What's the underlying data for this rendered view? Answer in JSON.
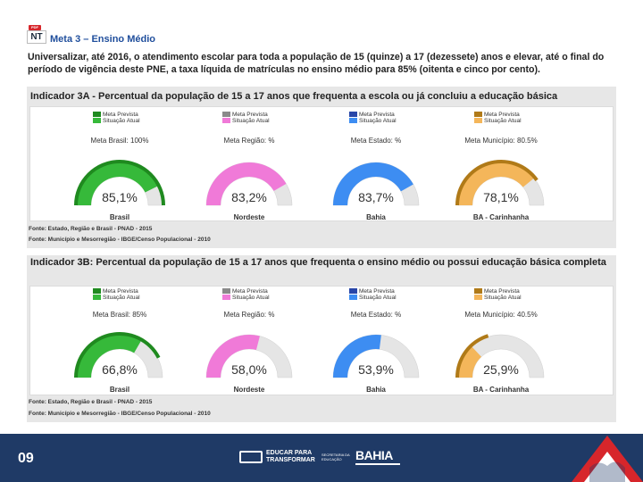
{
  "header": {
    "badge_top": "PDF",
    "badge": "NT",
    "title": "Meta 3 – Ensino Médio",
    "intro": "Universalizar, até 2016, o atendimento escolar para toda a população de 15 (quinze) a 17 (dezessete) anos e elevar, até o final do período de vigência deste PNE, a taxa líquida de matrículas no ensino médio para 85% (oitenta e cinco por cento)."
  },
  "panels": [
    {
      "title": "Indicador 3A - Percentual da população de 15 a 17 anos que frequenta a escola ou já concluiu a educação básica",
      "source1": "Fonte: Estado, Região e Brasil - PNAD - 2015",
      "source2": "Fonte: Município e Mesorregião - IBGE/Censo Populacional - 2010"
    },
    {
      "title": "Indicador 3B: Percentual da população de 15 a 17 anos que frequenta o ensino médio ou possui educação básica completa",
      "source1": "Fonte: Estado, Região e Brasil - PNAD - 2015",
      "source2": "Fonte: Município e Mesorregião - IBGE/Censo Populacional - 2010"
    }
  ],
  "chart_data": [
    {
      "type": "gauge",
      "title": "Indicador 3A - Percentual da população de 15 a 17 anos que frequenta a escola ou já concluiu a educação básica",
      "legend": [
        {
          "labels": [
            "Meta Prevista",
            "Situação Atual"
          ],
          "colors": [
            "#1f8a1f",
            "#36b93a"
          ]
        },
        {
          "labels": [
            "Meta Prevista",
            "Situação Atual"
          ],
          "colors": [
            "#8a8a8a",
            "#f07ad8"
          ]
        },
        {
          "labels": [
            "Meta Prevista",
            "Situação Atual"
          ],
          "colors": [
            "#2846a8",
            "#3d8df2"
          ]
        },
        {
          "labels": [
            "Meta Prevista",
            "Situação Atual"
          ],
          "colors": [
            "#b07a18",
            "#f4b65a"
          ]
        }
      ],
      "gauges": [
        {
          "meta_label": "Meta Brasil: 100%",
          "meta": 100,
          "value": 85.1,
          "value_label": "85,1%",
          "name": "Brasil",
          "fill": "#36b93a",
          "meta_color": "#1f8a1f"
        },
        {
          "meta_label": "Meta Região: %",
          "meta": null,
          "value": 83.2,
          "value_label": "83,2%",
          "name": "Nordeste",
          "fill": "#f07ad8",
          "meta_color": "#8a8a8a"
        },
        {
          "meta_label": "Meta Estado: %",
          "meta": null,
          "value": 83.7,
          "value_label": "83,7%",
          "name": "Bahia",
          "fill": "#3d8df2",
          "meta_color": "#2846a8"
        },
        {
          "meta_label": "Meta Município: 80.5%",
          "meta": 80.5,
          "value": 78.1,
          "value_label": "78,1%",
          "name": "BA - Carinhanha",
          "fill": "#f4b65a",
          "meta_color": "#b07a18"
        }
      ]
    },
    {
      "type": "gauge",
      "title": "Indicador 3B: Percentual da população de 15 a 17 anos que frequenta o ensino médio ou possui educação básica completa",
      "legend": [
        {
          "labels": [
            "Meta Prevista",
            "Situação Atual"
          ],
          "colors": [
            "#1f8a1f",
            "#36b93a"
          ]
        },
        {
          "labels": [
            "Meta Prevista",
            "Situação Atual"
          ],
          "colors": [
            "#8a8a8a",
            "#f07ad8"
          ]
        },
        {
          "labels": [
            "Meta Prevista",
            "Situação Atual"
          ],
          "colors": [
            "#2846a8",
            "#3d8df2"
          ]
        },
        {
          "labels": [
            "Meta Prevista",
            "Situação Atual"
          ],
          "colors": [
            "#b07a18",
            "#f4b65a"
          ]
        }
      ],
      "gauges": [
        {
          "meta_label": "Meta Brasil: 85%",
          "meta": 85,
          "value": 66.8,
          "value_label": "66,8%",
          "name": "Brasil",
          "fill": "#36b93a",
          "meta_color": "#1f8a1f"
        },
        {
          "meta_label": "Meta Região: %",
          "meta": null,
          "value": 58.0,
          "value_label": "58,0%",
          "name": "Nordeste",
          "fill": "#f07ad8",
          "meta_color": "#8a8a8a"
        },
        {
          "meta_label": "Meta Estado: %",
          "meta": null,
          "value": 53.9,
          "value_label": "53,9%",
          "name": "Bahia",
          "fill": "#3d8df2",
          "meta_color": "#2846a8"
        },
        {
          "meta_label": "Meta Município: 40.5%",
          "meta": 40.5,
          "value": 25.9,
          "value_label": "25,9%",
          "name": "BA - Carinhanha",
          "fill": "#f4b65a",
          "meta_color": "#b07a18"
        }
      ]
    }
  ],
  "footer": {
    "page_number": "09",
    "logo_educar_1": "EDUCAR PARA",
    "logo_educar_2": "TRANSFORMAR",
    "logo_secretaria": "SECRETARIA DA EDUCAÇÃO",
    "logo_bahia": "BAHIA",
    "colors": {
      "footer_bg": "#1f3a66",
      "accent_red": "#d7262b"
    }
  }
}
